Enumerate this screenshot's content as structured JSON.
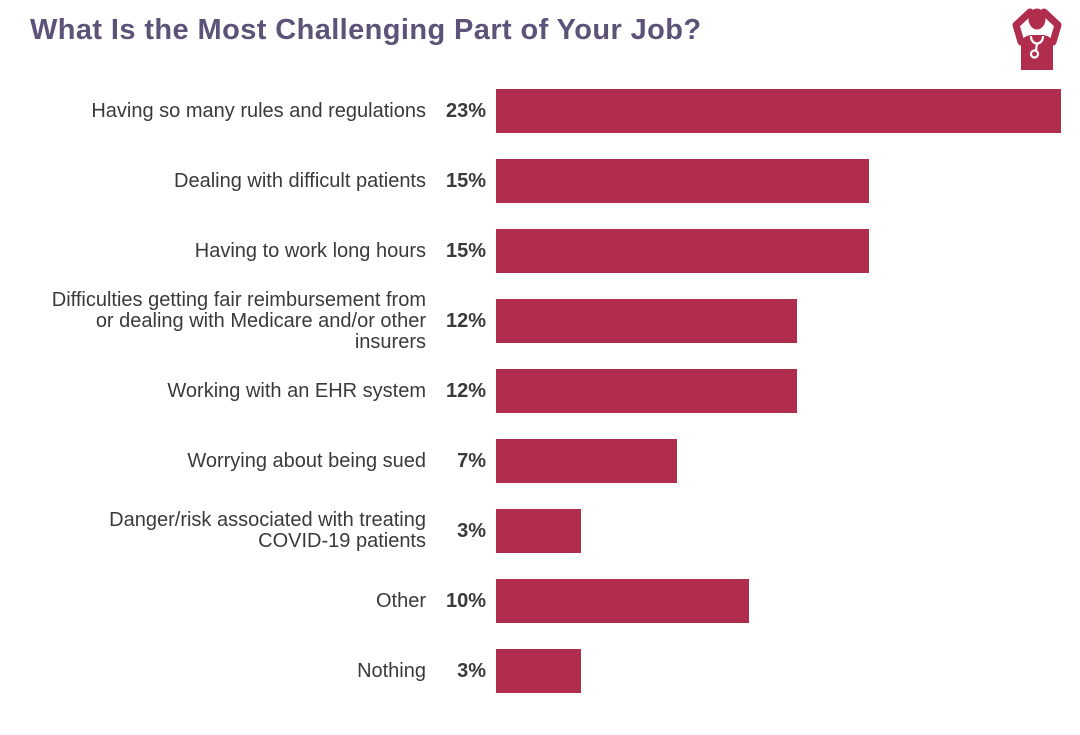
{
  "header": {
    "title": "What Is the Most Challenging Part of Your Job?",
    "icon": "frustrated-doctor-icon"
  },
  "colors": {
    "bar": "#b02d4e",
    "title": "#5d5379",
    "text": "#3a3a3a"
  },
  "chart_data": {
    "type": "bar",
    "orientation": "horizontal",
    "title": "What Is the Most Challenging Part of Your Job?",
    "categories": [
      "Having so many rules and regulations",
      "Dealing with difficult patients",
      "Having to work long hours",
      "Difficulties getting fair reimbursement from or dealing with Medicare and/or other insurers",
      "Working with an EHR system",
      "Worrying about being sued",
      "Danger/risk associated with treating COVID-19 patients",
      "Other",
      "Nothing"
    ],
    "values": [
      23,
      15,
      15,
      12,
      12,
      7,
      3,
      10,
      3
    ],
    "value_labels": [
      "23%",
      "15%",
      "15%",
      "12%",
      "12%",
      "7%",
      "3%",
      "10%",
      "3%"
    ],
    "xlabel": "",
    "ylabel": "",
    "xlim": [
      0,
      23
    ],
    "grid": false,
    "legend": false,
    "bar_color": "#b02d4e"
  }
}
